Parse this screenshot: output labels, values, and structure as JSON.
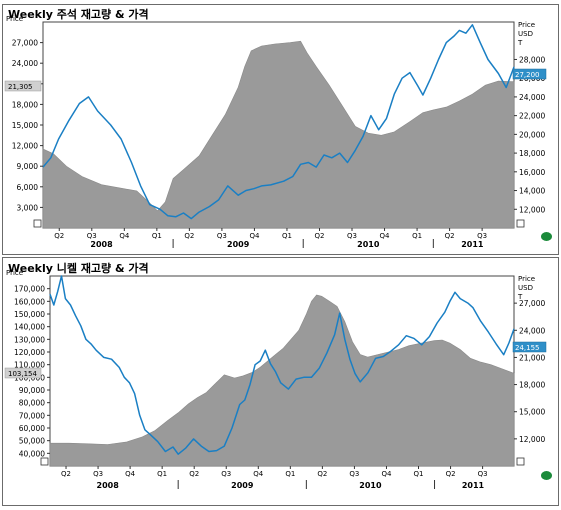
{
  "colors": {
    "price_line": "#1a7fc4",
    "inventory_area": "#9a9a9a",
    "frame": "#6b6b6b",
    "status": "#1b8a3a",
    "tag_left_fill": "#d0d0d0",
    "tag_right_fill": "#2f8fc8"
  },
  "status_icon": "green-dot-icon",
  "chart_data": [
    {
      "type": "area+line",
      "title": "Weekly 주석 재고량 & 가격",
      "left_axis_label": "Price",
      "right_axis_label_lines": [
        "Price",
        "USD",
        "T"
      ],
      "left_ticks": [
        "3,000",
        "6,000",
        "9,000",
        "12,000",
        "15,000",
        "18,000",
        "21,000",
        "24,000",
        "27,000"
      ],
      "left_ylim": [
        0,
        30000
      ],
      "right_ticks": [
        "12,000",
        "14,000",
        "16,000",
        "18,000",
        "20,000",
        "22,000",
        "24,000",
        "26,000",
        "28,000"
      ],
      "right_ylim": [
        10000,
        32000
      ],
      "quarter_labels": [
        "Q2",
        "Q3",
        "Q4",
        "Q1",
        "Q2",
        "Q3",
        "Q4",
        "Q1",
        "Q2",
        "Q3",
        "Q4",
        "Q1",
        "Q2",
        "Q3"
      ],
      "year_labels": [
        "2008",
        "2009",
        "2010",
        "2011"
      ],
      "left_tag": "21,305",
      "right_tag": "27,200",
      "x_range": [
        2008.0,
        2011.62
      ],
      "series": [
        {
          "kind": "inventory",
          "axis": "left",
          "points": [
            [
              2008.0,
              11500
            ],
            [
              2008.08,
              10800
            ],
            [
              2008.18,
              9000
            ],
            [
              2008.3,
              7500
            ],
            [
              2008.45,
              6300
            ],
            [
              2008.6,
              5800
            ],
            [
              2008.72,
              5400
            ],
            [
              2008.8,
              4000
            ],
            [
              2008.88,
              2500
            ],
            [
              2008.94,
              3800
            ],
            [
              2009.0,
              7200
            ],
            [
              2009.08,
              8500
            ],
            [
              2009.2,
              10500
            ],
            [
              2009.3,
              13500
            ],
            [
              2009.4,
              16500
            ],
            [
              2009.5,
              20500
            ],
            [
              2009.55,
              23500
            ],
            [
              2009.6,
              25800
            ],
            [
              2009.68,
              26500
            ],
            [
              2009.78,
              26800
            ],
            [
              2009.9,
              27000
            ],
            [
              2009.98,
              27200
            ],
            [
              2010.03,
              25500
            ],
            [
              2010.1,
              23500
            ],
            [
              2010.2,
              20800
            ],
            [
              2010.3,
              17800
            ],
            [
              2010.4,
              14800
            ],
            [
              2010.5,
              13800
            ],
            [
              2010.6,
              13500
            ],
            [
              2010.7,
              14000
            ],
            [
              2010.82,
              15500
            ],
            [
              2010.92,
              16800
            ],
            [
              2011.0,
              17200
            ],
            [
              2011.1,
              17600
            ],
            [
              2011.2,
              18500
            ],
            [
              2011.3,
              19500
            ],
            [
              2011.4,
              20800
            ],
            [
              2011.5,
              21400
            ],
            [
              2011.62,
              21305
            ]
          ]
        },
        {
          "kind": "price",
          "axis": "right",
          "points": [
            [
              2008.0,
              16500
            ],
            [
              2008.06,
              17500
            ],
            [
              2008.12,
              19500
            ],
            [
              2008.2,
              21500
            ],
            [
              2008.28,
              23300
            ],
            [
              2008.35,
              24000
            ],
            [
              2008.42,
              22500
            ],
            [
              2008.52,
              21000
            ],
            [
              2008.6,
              19500
            ],
            [
              2008.68,
              17000
            ],
            [
              2008.75,
              14500
            ],
            [
              2008.82,
              12500
            ],
            [
              2008.9,
              12000
            ],
            [
              2008.96,
              11300
            ],
            [
              2009.02,
              11200
            ],
            [
              2009.08,
              11600
            ],
            [
              2009.14,
              11000
            ],
            [
              2009.2,
              11700
            ],
            [
              2009.28,
              12300
            ],
            [
              2009.35,
              13000
            ],
            [
              2009.42,
              14500
            ],
            [
              2009.5,
              13500
            ],
            [
              2009.56,
              14000
            ],
            [
              2009.62,
              14200
            ],
            [
              2009.68,
              14500
            ],
            [
              2009.75,
              14600
            ],
            [
              2009.85,
              15000
            ],
            [
              2009.92,
              15500
            ],
            [
              2009.98,
              16800
            ],
            [
              2010.04,
              17000
            ],
            [
              2010.1,
              16500
            ],
            [
              2010.16,
              17800
            ],
            [
              2010.22,
              17500
            ],
            [
              2010.28,
              18000
            ],
            [
              2010.34,
              17000
            ],
            [
              2010.4,
              18300
            ],
            [
              2010.46,
              19800
            ],
            [
              2010.52,
              22000
            ],
            [
              2010.58,
              20500
            ],
            [
              2010.64,
              21700
            ],
            [
              2010.7,
              24300
            ],
            [
              2010.76,
              26000
            ],
            [
              2010.82,
              26600
            ],
            [
              2010.88,
              25200
            ],
            [
              2010.92,
              24200
            ],
            [
              2010.98,
              26000
            ],
            [
              2011.04,
              28000
            ],
            [
              2011.1,
              29800
            ],
            [
              2011.16,
              30500
            ],
            [
              2011.2,
              31100
            ],
            [
              2011.25,
              30800
            ],
            [
              2011.3,
              31700
            ],
            [
              2011.36,
              29800
            ],
            [
              2011.42,
              28000
            ],
            [
              2011.5,
              26500
            ],
            [
              2011.56,
              25000
            ],
            [
              2011.62,
              27200
            ]
          ]
        }
      ]
    },
    {
      "type": "area+line",
      "title": "Weekly 니켈 재고량 & 가격",
      "left_axis_label": "Price",
      "right_axis_label_lines": [
        "Price",
        "USD",
        "T"
      ],
      "left_ticks": [
        "40,000",
        "50,000",
        "60,000",
        "70,000",
        "80,000",
        "90,000",
        "100,000",
        "110,000",
        "120,000",
        "130,000",
        "140,000",
        "150,000",
        "160,000",
        "170,000"
      ],
      "left_ylim": [
        30000,
        180000
      ],
      "right_ticks": [
        "12,000",
        "15,000",
        "18,000",
        "21,000",
        "24,000",
        "27,000"
      ],
      "right_ylim": [
        9000,
        30000
      ],
      "quarter_labels": [
        "Q2",
        "Q3",
        "Q4",
        "Q1",
        "Q2",
        "Q3",
        "Q4",
        "Q1",
        "Q2",
        "Q3",
        "Q4",
        "Q1",
        "Q2",
        "Q3"
      ],
      "year_labels": [
        "2008",
        "2009",
        "2010",
        "2011"
      ],
      "left_tag": "103,154",
      "right_tag": "24,155",
      "x_range": [
        2008.0,
        2011.62
      ],
      "series": [
        {
          "kind": "inventory",
          "axis": "left",
          "points": [
            [
              2008.0,
              48000
            ],
            [
              2008.15,
              48000
            ],
            [
              2008.3,
              47500
            ],
            [
              2008.45,
              47000
            ],
            [
              2008.6,
              49000
            ],
            [
              2008.72,
              53000
            ],
            [
              2008.82,
              58000
            ],
            [
              2008.92,
              66000
            ],
            [
              2009.0,
              72000
            ],
            [
              2009.08,
              79000
            ],
            [
              2009.15,
              84000
            ],
            [
              2009.22,
              88000
            ],
            [
              2009.3,
              96000
            ],
            [
              2009.36,
              102000
            ],
            [
              2009.44,
              99500
            ],
            [
              2009.5,
              101000
            ],
            [
              2009.58,
              104000
            ],
            [
              2009.64,
              108000
            ],
            [
              2009.7,
              113000
            ],
            [
              2009.76,
              118000
            ],
            [
              2009.82,
              123000
            ],
            [
              2009.88,
              130000
            ],
            [
              2009.94,
              137000
            ],
            [
              2010.0,
              150000
            ],
            [
              2010.04,
              160000
            ],
            [
              2010.08,
              165000
            ],
            [
              2010.12,
              164000
            ],
            [
              2010.18,
              160000
            ],
            [
              2010.24,
              156000
            ],
            [
              2010.3,
              144000
            ],
            [
              2010.36,
              128000
            ],
            [
              2010.42,
              118000
            ],
            [
              2010.48,
              116000
            ],
            [
              2010.56,
              118000
            ],
            [
              2010.64,
              120000
            ],
            [
              2010.72,
              122000
            ],
            [
              2010.8,
              125000
            ],
            [
              2010.9,
              127000
            ],
            [
              2011.0,
              129000
            ],
            [
              2011.06,
              129500
            ],
            [
              2011.12,
              127000
            ],
            [
              2011.2,
              122000
            ],
            [
              2011.28,
              115000
            ],
            [
              2011.36,
              112000
            ],
            [
              2011.44,
              110000
            ],
            [
              2011.52,
              107000
            ],
            [
              2011.62,
              103154
            ]
          ]
        },
        {
          "kind": "price",
          "axis": "right",
          "points": [
            [
              2008.0,
              28000
            ],
            [
              2008.03,
              26800
            ],
            [
              2008.06,
              28300
            ],
            [
              2008.09,
              30000
            ],
            [
              2008.12,
              27500
            ],
            [
              2008.16,
              26800
            ],
            [
              2008.2,
              25600
            ],
            [
              2008.24,
              24500
            ],
            [
              2008.28,
              23000
            ],
            [
              2008.32,
              22500
            ],
            [
              2008.36,
              21800
            ],
            [
              2008.42,
              21000
            ],
            [
              2008.48,
              20800
            ],
            [
              2008.54,
              19900
            ],
            [
              2008.58,
              18800
            ],
            [
              2008.62,
              18200
            ],
            [
              2008.66,
              17000
            ],
            [
              2008.7,
              14600
            ],
            [
              2008.74,
              13000
            ],
            [
              2008.78,
              12500
            ],
            [
              2008.84,
              11700
            ],
            [
              2008.9,
              10600
            ],
            [
              2008.96,
              11100
            ],
            [
              2009.0,
              10300
            ],
            [
              2009.06,
              11000
            ],
            [
              2009.12,
              12000
            ],
            [
              2009.18,
              11200
            ],
            [
              2009.24,
              10600
            ],
            [
              2009.3,
              10700
            ],
            [
              2009.36,
              11200
            ],
            [
              2009.42,
              13200
            ],
            [
              2009.48,
              15800
            ],
            [
              2009.52,
              16300
            ],
            [
              2009.56,
              18000
            ],
            [
              2009.6,
              20200
            ],
            [
              2009.64,
              20600
            ],
            [
              2009.68,
              21800
            ],
            [
              2009.72,
              20300
            ],
            [
              2009.76,
              19400
            ],
            [
              2009.8,
              18200
            ],
            [
              2009.86,
              17500
            ],
            [
              2009.92,
              18600
            ],
            [
              2009.98,
              18800
            ],
            [
              2010.04,
              18800
            ],
            [
              2010.1,
              19800
            ],
            [
              2010.16,
              21500
            ],
            [
              2010.22,
              23500
            ],
            [
              2010.26,
              25900
            ],
            [
              2010.3,
              23000
            ],
            [
              2010.34,
              20800
            ],
            [
              2010.38,
              19200
            ],
            [
              2010.42,
              18300
            ],
            [
              2010.48,
              19300
            ],
            [
              2010.54,
              20900
            ],
            [
              2010.6,
              21100
            ],
            [
              2010.66,
              21700
            ],
            [
              2010.72,
              22400
            ],
            [
              2010.78,
              23400
            ],
            [
              2010.84,
              23100
            ],
            [
              2010.9,
              22400
            ],
            [
              2010.96,
              23300
            ],
            [
              2011.02,
              24800
            ],
            [
              2011.08,
              26000
            ],
            [
              2011.12,
              27200
            ],
            [
              2011.16,
              28200
            ],
            [
              2011.2,
              27500
            ],
            [
              2011.26,
              27000
            ],
            [
              2011.3,
              26500
            ],
            [
              2011.36,
              25000
            ],
            [
              2011.42,
              23800
            ],
            [
              2011.48,
              22500
            ],
            [
              2011.54,
              21300
            ],
            [
              2011.58,
              22600
            ],
            [
              2011.62,
              24155
            ]
          ]
        }
      ]
    }
  ]
}
